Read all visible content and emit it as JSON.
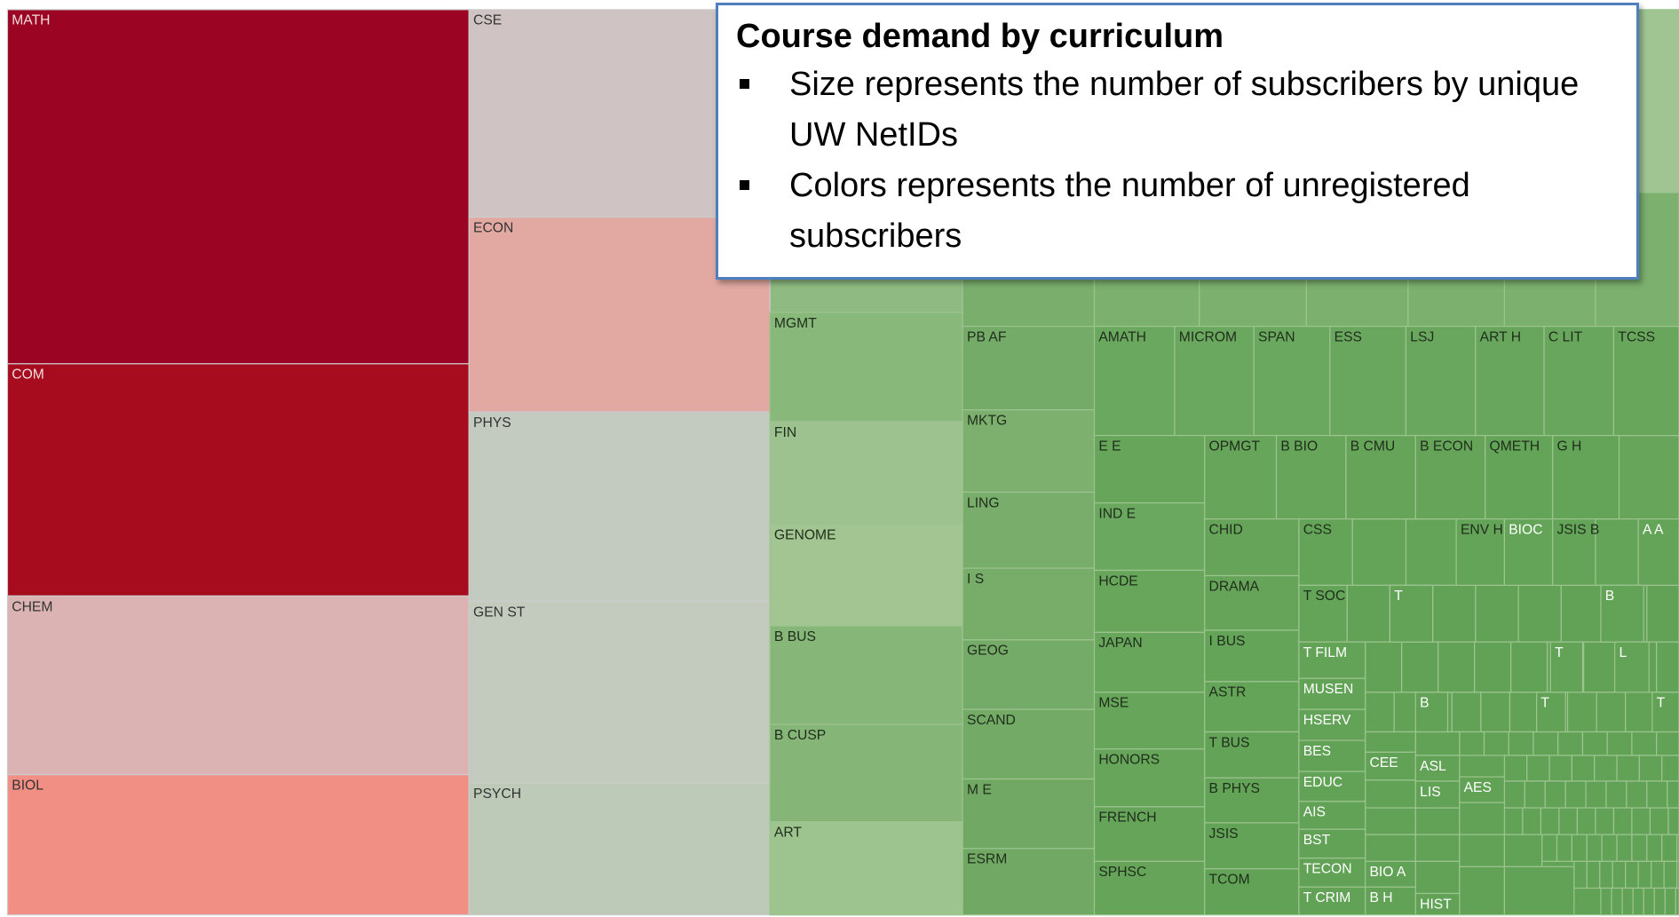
{
  "callout": {
    "title": "Course demand by curriculum",
    "bullets": [
      "Size represents the number of subscribers by unique UW NetIDs",
      "Colors represents the number of unregistered subscribers"
    ]
  },
  "tiles": [
    "MATH",
    "COM",
    "CHEM",
    "BIOL",
    "CSE",
    "ECON",
    "PHYS",
    "GEN ST",
    "PSYCH",
    "MGMT",
    "FIN",
    "GENOME",
    "B BUS",
    "B CUSP",
    "ART",
    "PB AF",
    "MKTG",
    "LING",
    "I S",
    "GEOG",
    "SCAND",
    "M E",
    "ESRM",
    "AMATH",
    "MICROM",
    "SPAN",
    "ESS",
    "LSJ",
    "ART H",
    "C LIT",
    "TCSS",
    "E E",
    "IND E",
    "HCDE",
    "JAPAN",
    "MSE",
    "HONORS",
    "FRENCH",
    "SPHSC",
    "OPMGT",
    "B BIO",
    "B CMU",
    "B ECON",
    "QMETH",
    "G H",
    "CHID",
    "DRAMA",
    "I BUS",
    "ASTR",
    "T BUS",
    "B PHYS",
    "JSIS",
    "TCOM",
    "CSS",
    "T SOC",
    "T FILM",
    "MUSEN",
    "HSERV",
    "BES",
    "EDUC",
    "AIS",
    "BST",
    "TECON",
    "T CRIM",
    "ENV H",
    "BIOC",
    "JSIS B",
    "A A",
    "T",
    "B",
    "T",
    "L",
    "B",
    "T",
    "T",
    "CEE",
    "BIO A",
    "B H",
    "ASL",
    "LIS",
    "AES",
    "HIST"
  ]
}
